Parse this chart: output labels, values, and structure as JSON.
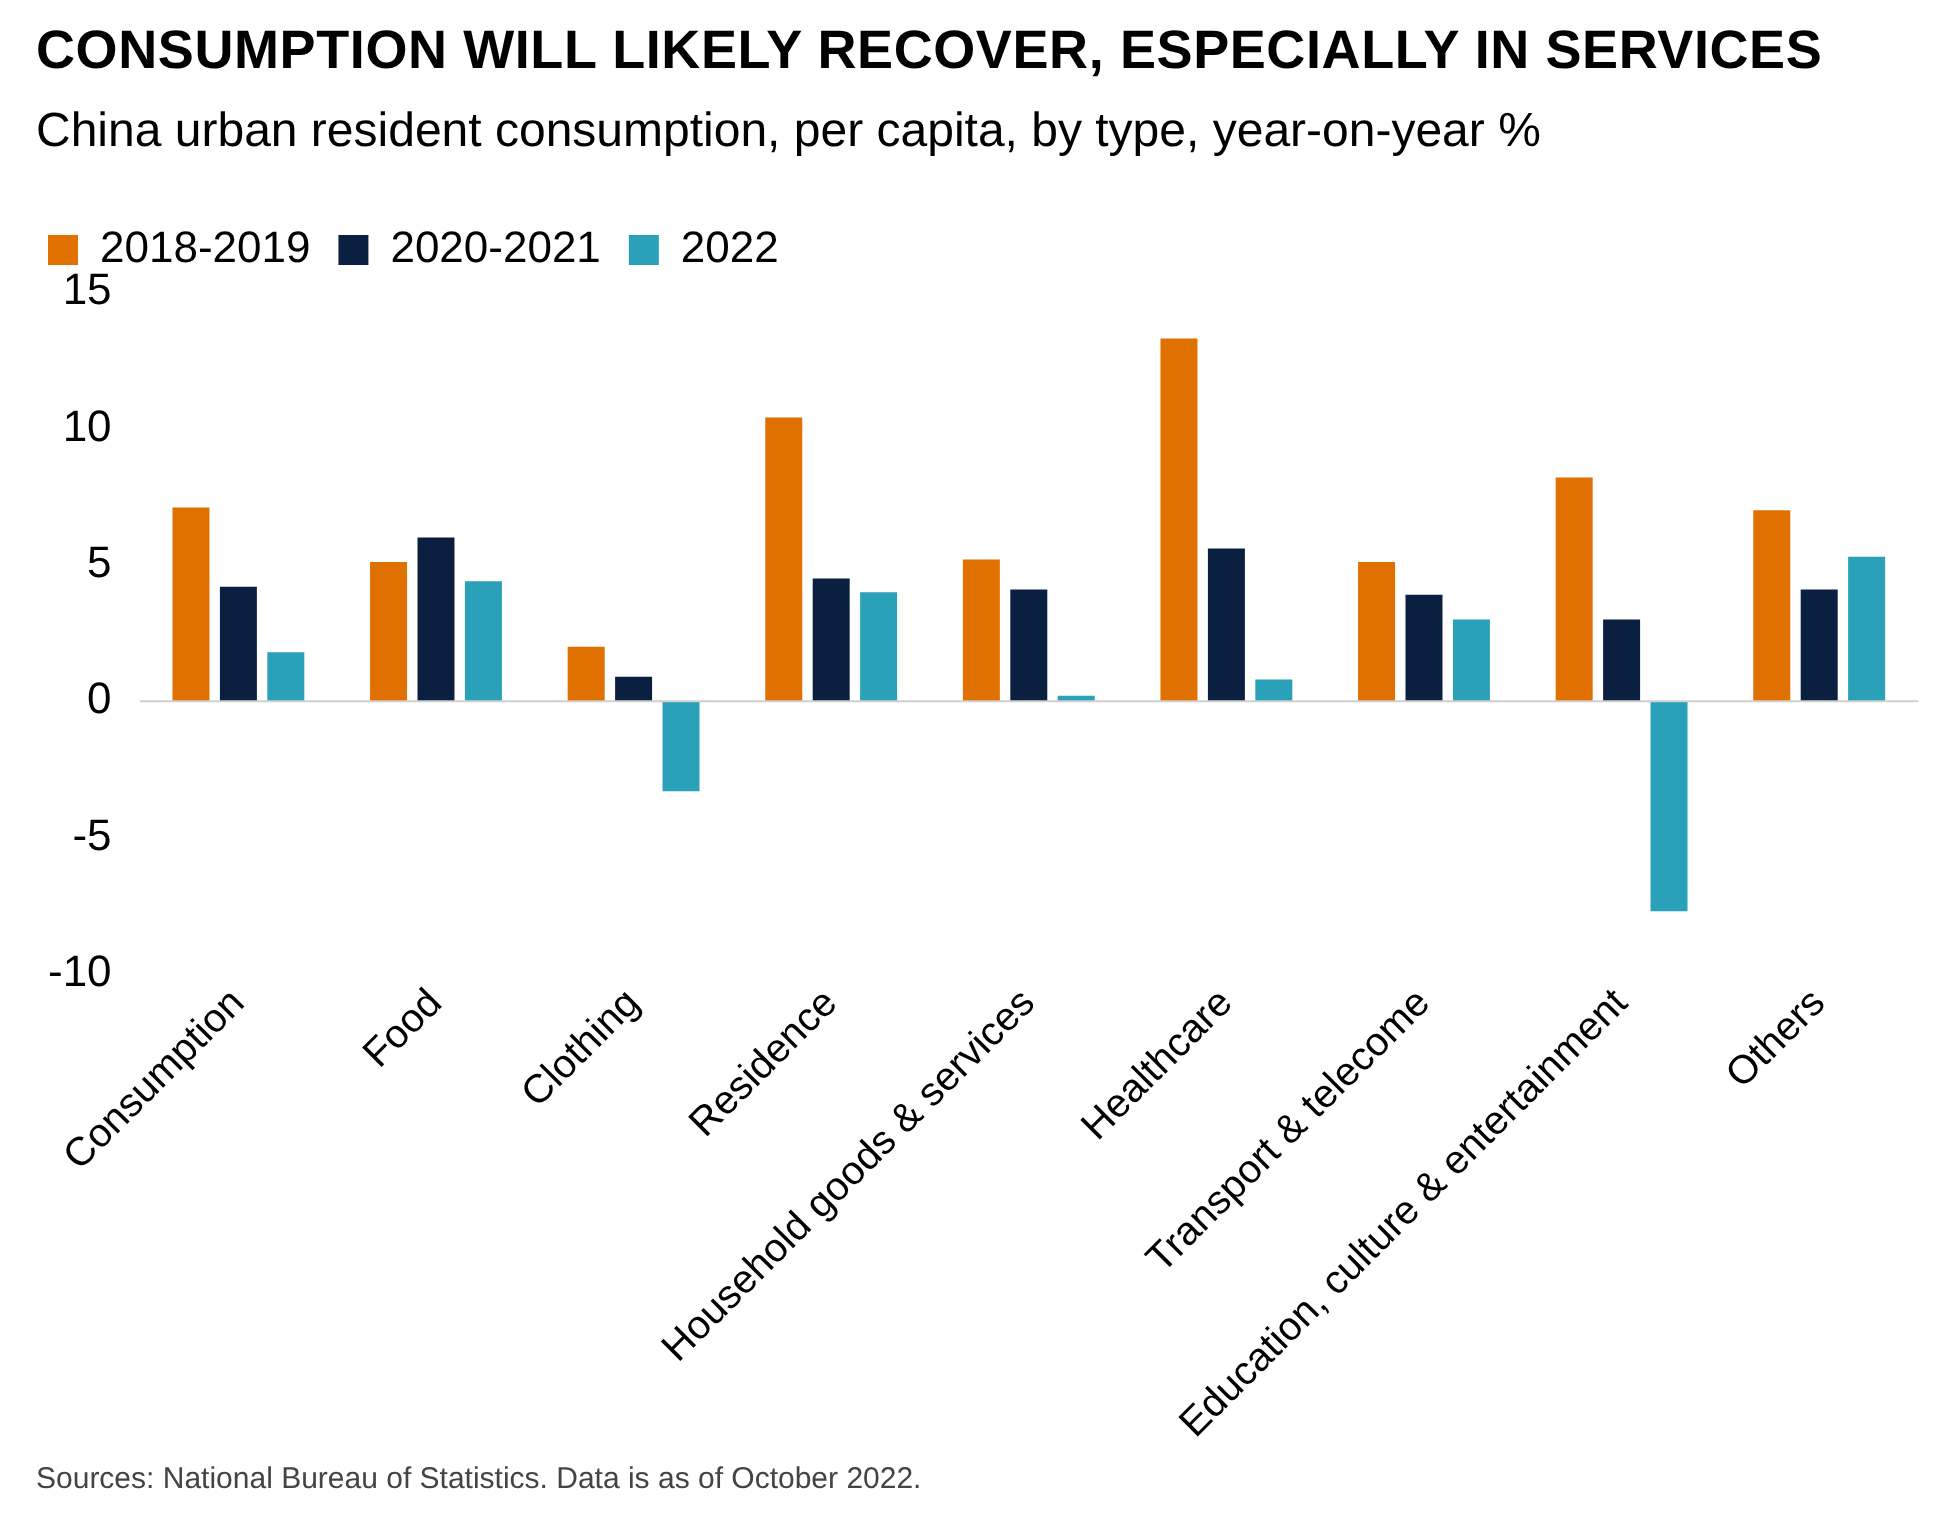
{
  "chart_data": {
    "type": "bar",
    "title": "CONSUMPTION WILL LIKELY RECOVER, ESPECIALLY IN SERVICES",
    "subtitle": "China urban resident consumption, per capita, by type, year-on-year %",
    "categories": [
      "Consumption",
      "Food",
      "Clothing",
      "Residence",
      "Household goods & services",
      "Healthcare",
      "Transport & telecome",
      "Education, culture & entertainment",
      "Others"
    ],
    "series": [
      {
        "name": "2018-2019",
        "color": "#e07000",
        "values": [
          7.1,
          5.1,
          2.0,
          10.4,
          5.2,
          13.3,
          5.1,
          8.2,
          7.0
        ]
      },
      {
        "name": "2020-2021",
        "color": "#0b1f41",
        "values": [
          4.2,
          6.0,
          0.9,
          4.5,
          4.1,
          5.6,
          3.9,
          3.0,
          4.1
        ]
      },
      {
        "name": "2022",
        "color": "#2aa1b8",
        "values": [
          1.8,
          4.4,
          -3.3,
          4.0,
          0.2,
          0.8,
          3.0,
          -7.7,
          5.3
        ]
      }
    ],
    "ref_lines": [
      {
        "axis": "y",
        "value": 0,
        "color": "#cfcfcf"
      }
    ],
    "ylim": [
      -10,
      15
    ],
    "yticks": [
      -10,
      -5,
      0,
      5,
      10,
      15
    ],
    "grid": false,
    "legend": "top left",
    "annotations": [
      "Sources: National Bureau of Statistics. Data is as of October 2022."
    ]
  }
}
